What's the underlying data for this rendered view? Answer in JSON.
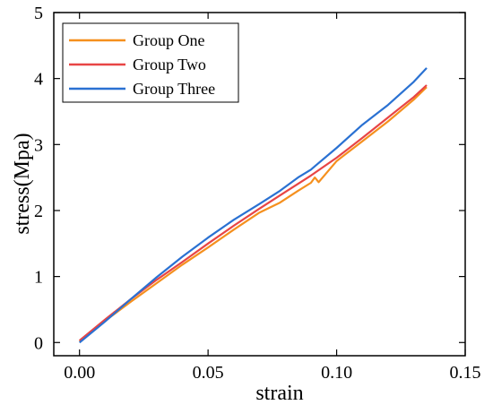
{
  "chart_data": {
    "type": "line",
    "title": "",
    "xlabel": "strain",
    "ylabel": "stress(Mpa)",
    "xlim": [
      -0.01,
      0.15
    ],
    "ylim": [
      -0.2,
      5
    ],
    "xticks": [
      0.0,
      0.05,
      0.1,
      0.15
    ],
    "xtick_labels": [
      "0.00",
      "0.05",
      "0.10",
      "0.15"
    ],
    "yticks": [
      0,
      1,
      2,
      3,
      4,
      5
    ],
    "ytick_labels": [
      "0",
      "1",
      "2",
      "3",
      "4",
      "5"
    ],
    "grid": false,
    "legend_position": "top-left",
    "series": [
      {
        "name": "Group One",
        "color": "#f5901e",
        "points": [
          [
            0.0,
            0.02
          ],
          [
            0.01,
            0.33
          ],
          [
            0.02,
            0.62
          ],
          [
            0.03,
            0.9
          ],
          [
            0.04,
            1.18
          ],
          [
            0.05,
            1.44
          ],
          [
            0.06,
            1.71
          ],
          [
            0.07,
            1.97
          ],
          [
            0.078,
            2.12
          ],
          [
            0.085,
            2.3
          ],
          [
            0.09,
            2.42
          ],
          [
            0.0915,
            2.5
          ],
          [
            0.093,
            2.43
          ],
          [
            0.1,
            2.75
          ],
          [
            0.11,
            3.05
          ],
          [
            0.12,
            3.35
          ],
          [
            0.13,
            3.68
          ],
          [
            0.135,
            3.87
          ]
        ]
      },
      {
        "name": "Group Two",
        "color": "#e84545",
        "points": [
          [
            0.0,
            0.03
          ],
          [
            0.01,
            0.35
          ],
          [
            0.02,
            0.66
          ],
          [
            0.03,
            0.95
          ],
          [
            0.04,
            1.22
          ],
          [
            0.05,
            1.5
          ],
          [
            0.06,
            1.77
          ],
          [
            0.07,
            2.03
          ],
          [
            0.08,
            2.28
          ],
          [
            0.09,
            2.53
          ],
          [
            0.1,
            2.8
          ],
          [
            0.11,
            3.1
          ],
          [
            0.12,
            3.41
          ],
          [
            0.13,
            3.72
          ],
          [
            0.135,
            3.9
          ]
        ]
      },
      {
        "name": "Group Three",
        "color": "#2a71d2",
        "points": [
          [
            0.0,
            0.0
          ],
          [
            0.01,
            0.32
          ],
          [
            0.02,
            0.66
          ],
          [
            0.03,
            0.99
          ],
          [
            0.04,
            1.3
          ],
          [
            0.05,
            1.59
          ],
          [
            0.06,
            1.86
          ],
          [
            0.07,
            2.1
          ],
          [
            0.078,
            2.3
          ],
          [
            0.085,
            2.5
          ],
          [
            0.09,
            2.62
          ],
          [
            0.0915,
            2.67
          ],
          [
            0.1,
            2.95
          ],
          [
            0.11,
            3.3
          ],
          [
            0.12,
            3.6
          ],
          [
            0.13,
            3.95
          ],
          [
            0.135,
            4.16
          ]
        ]
      }
    ]
  }
}
